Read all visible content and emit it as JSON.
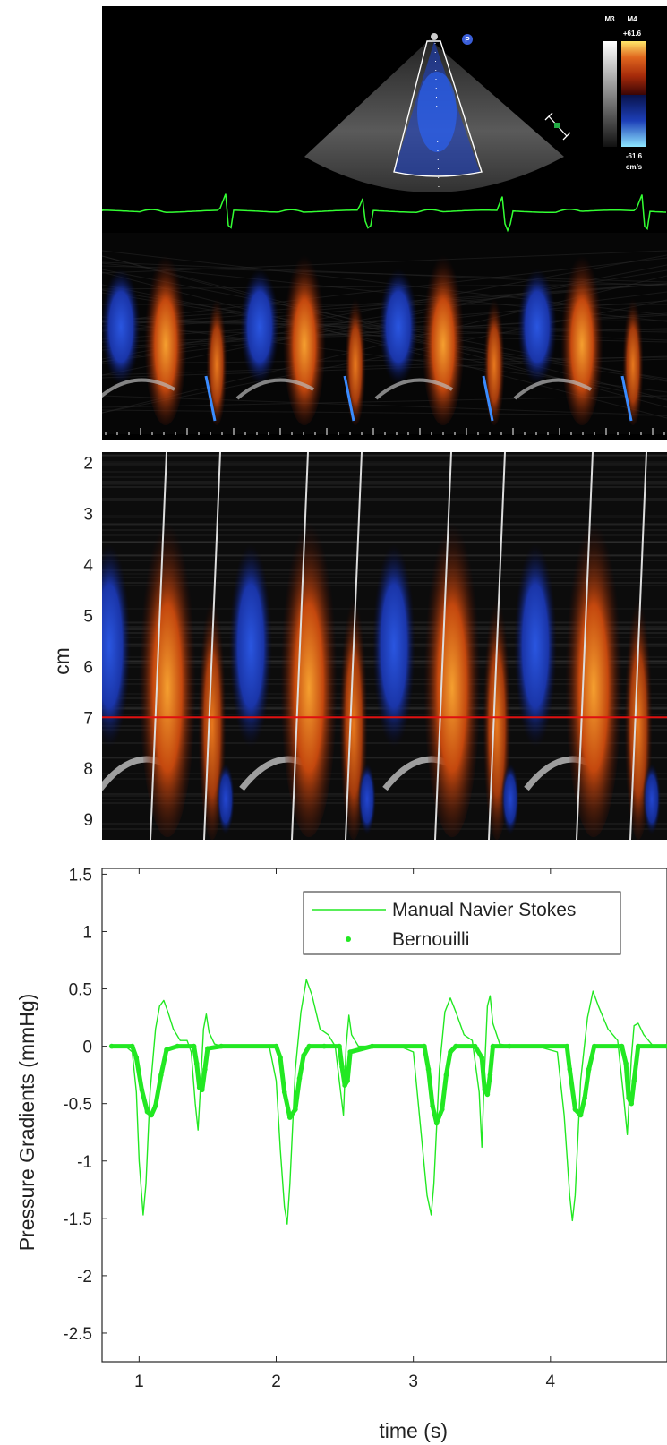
{
  "echo_panel": {
    "scale_top_labels": [
      "M3",
      "M4"
    ],
    "scale_max": "+61.6",
    "scale_min": "-61.6",
    "scale_unit": "cm/s",
    "probe_marker": "P"
  },
  "chart_data": [
    {
      "type": "heatmap",
      "description_units": "depth vs time color M-mode",
      "ylabel": "cm",
      "yticks": [
        "2",
        "3",
        "4",
        "5",
        "6",
        "7",
        "8",
        "9"
      ],
      "ylim": [
        1.8,
        9.4
      ],
      "reference_line_depth": 7.0,
      "colors": {
        "toward": "#e0661e",
        "away": "#1d3fb8",
        "line": "#e01010",
        "slopes": "#dddddd"
      }
    },
    {
      "type": "line",
      "xlabel": "time (s)",
      "ylabel": "Pressure Gradients (mmHg)",
      "xlim": [
        0.73,
        4.85
      ],
      "ylim": [
        -2.75,
        1.55
      ],
      "xticks": [
        "1",
        "2",
        "3",
        "4"
      ],
      "yticks": [
        "1.5",
        "1",
        "0.5",
        "0",
        "-0.5",
        "-1",
        "-1.5",
        "-2",
        "-2.5"
      ],
      "grid": false,
      "legend_position": "top-center",
      "colors": {
        "series": "#22e822"
      },
      "series": [
        {
          "name": "Manual Navier Stokes",
          "style": "line",
          "x": [
            0.8,
            0.9,
            0.95,
            0.98,
            1.0,
            1.03,
            1.05,
            1.08,
            1.12,
            1.15,
            1.18,
            1.21,
            1.25,
            1.3,
            1.35,
            1.38,
            1.41,
            1.43,
            1.45,
            1.47,
            1.49,
            1.51,
            1.55,
            1.6,
            1.7,
            1.85,
            1.95,
            2.0,
            2.03,
            2.06,
            2.08,
            2.1,
            2.14,
            2.18,
            2.22,
            2.26,
            2.32,
            2.38,
            2.43,
            2.47,
            2.49,
            2.51,
            2.53,
            2.55,
            2.6,
            2.7,
            2.9,
            3.0,
            3.06,
            3.1,
            3.13,
            3.15,
            3.19,
            3.23,
            3.27,
            3.31,
            3.37,
            3.43,
            3.48,
            3.5,
            3.52,
            3.54,
            3.56,
            3.58,
            3.63,
            3.7,
            3.9,
            4.05,
            4.1,
            4.14,
            4.16,
            4.18,
            4.22,
            4.27,
            4.31,
            4.35,
            4.42,
            4.49,
            4.53,
            4.56,
            4.59,
            4.61,
            4.64,
            4.68,
            4.75,
            4.85
          ],
          "y": [
            0,
            0,
            -0.05,
            -0.4,
            -1.0,
            -1.47,
            -1.2,
            -0.4,
            0.15,
            0.35,
            0.4,
            0.3,
            0.15,
            0.05,
            0.05,
            -0.05,
            -0.5,
            -0.73,
            -0.3,
            0.15,
            0.28,
            0.12,
            0.02,
            0,
            0,
            0,
            0,
            -0.3,
            -0.9,
            -1.4,
            -1.55,
            -1.2,
            -0.2,
            0.3,
            0.58,
            0.45,
            0.15,
            0.1,
            0.0,
            -0.4,
            -0.6,
            0.0,
            0.27,
            0.1,
            0.0,
            0,
            0,
            -0.05,
            -0.8,
            -1.3,
            -1.47,
            -1.2,
            -0.2,
            0.3,
            0.42,
            0.3,
            0.1,
            0.05,
            -0.4,
            -0.88,
            -0.2,
            0.35,
            0.44,
            0.2,
            0.02,
            0,
            0,
            -0.05,
            -0.6,
            -1.3,
            -1.52,
            -1.3,
            -0.3,
            0.25,
            0.48,
            0.35,
            0.15,
            0.05,
            -0.4,
            -0.77,
            -0.1,
            0.18,
            0.2,
            0.1,
            0.0,
            0
          ]
        },
        {
          "name": "Bernouilli",
          "style": "markers",
          "x": [
            0.8,
            0.95,
            0.98,
            1.02,
            1.06,
            1.09,
            1.12,
            1.16,
            1.2,
            1.28,
            1.4,
            1.42,
            1.44,
            1.46,
            1.48,
            1.5,
            1.6,
            2.0,
            2.03,
            2.06,
            2.1,
            2.14,
            2.17,
            2.2,
            2.24,
            2.35,
            2.46,
            2.48,
            2.5,
            2.52,
            2.54,
            2.7,
            3.08,
            3.11,
            3.14,
            3.17,
            3.21,
            3.24,
            3.27,
            3.31,
            3.45,
            3.5,
            3.52,
            3.54,
            3.56,
            3.58,
            3.7,
            4.12,
            4.14,
            4.18,
            4.22,
            4.25,
            4.28,
            4.32,
            4.52,
            4.55,
            4.57,
            4.59,
            4.61,
            4.64,
            4.85
          ],
          "y": [
            0,
            0,
            -0.1,
            -0.38,
            -0.57,
            -0.6,
            -0.52,
            -0.25,
            -0.03,
            0,
            0,
            -0.15,
            -0.36,
            -0.38,
            -0.2,
            -0.02,
            0,
            0,
            -0.1,
            -0.4,
            -0.62,
            -0.55,
            -0.28,
            -0.08,
            0,
            0,
            0,
            -0.18,
            -0.34,
            -0.3,
            -0.05,
            0,
            0,
            -0.2,
            -0.52,
            -0.67,
            -0.55,
            -0.25,
            -0.05,
            0,
            0,
            -0.1,
            -0.38,
            -0.42,
            -0.25,
            0,
            0,
            0,
            -0.2,
            -0.55,
            -0.6,
            -0.45,
            -0.2,
            0,
            0,
            -0.15,
            -0.45,
            -0.5,
            -0.3,
            0,
            0
          ]
        }
      ]
    }
  ]
}
